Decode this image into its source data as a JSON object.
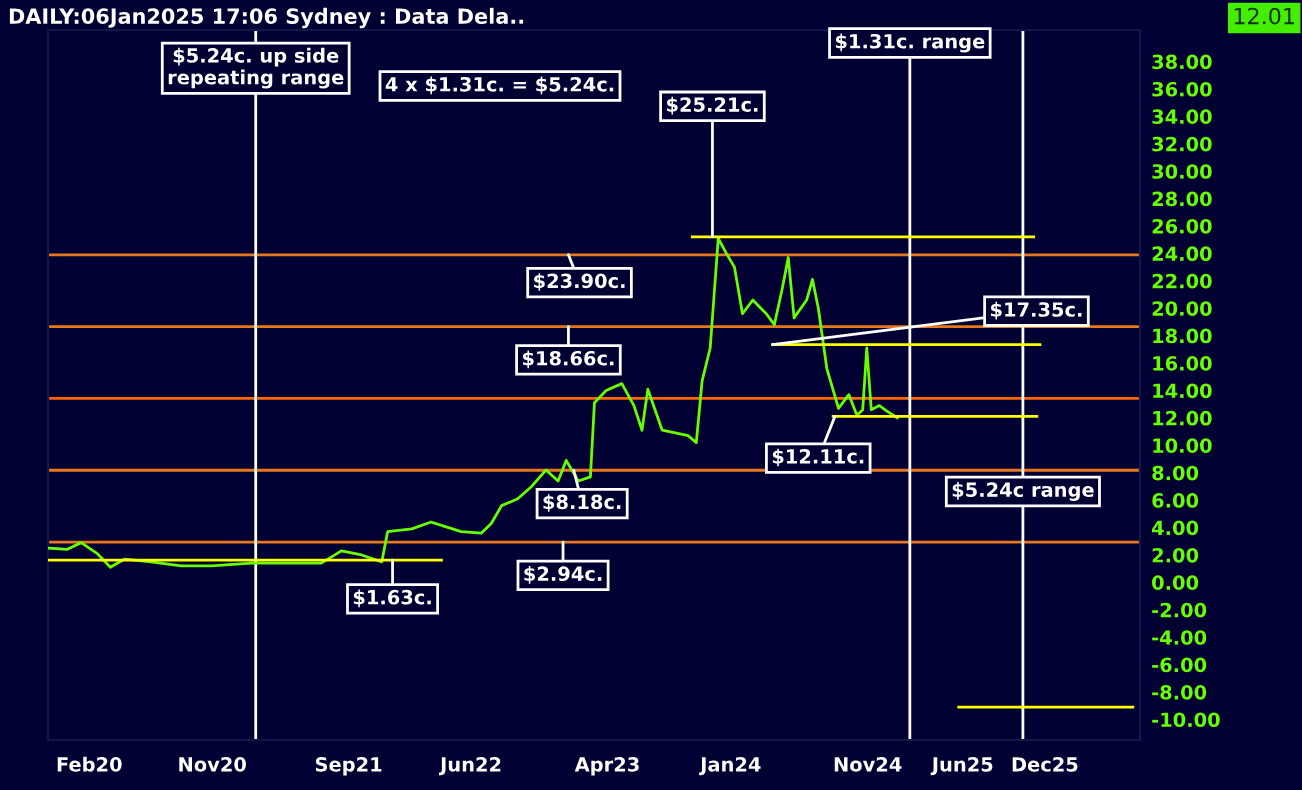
{
  "chart_data": {
    "type": "line",
    "title": "DAILY:06Jan2025 17:06 Sydney : Data Dela..",
    "series": [
      {
        "color": "#66ff00",
        "x": [
          "2019-11-04",
          "2019-12-13",
          "2020-01-14",
          "2020-02-19",
          "2020-03-19",
          "2020-04-20",
          "2020-06-17",
          "2020-08-24",
          "2020-10-30",
          "2021-01-28",
          "2021-04-26",
          "2021-07-02",
          "2021-08-16",
          "2021-09-30",
          "2021-11-14",
          "2021-11-27",
          "2022-01-20",
          "2022-03-04",
          "2022-05-10",
          "2022-06-24",
          "2022-07-16",
          "2022-08-08",
          "2022-09-13",
          "2022-10-14",
          "2022-11-15",
          "2022-12-12",
          "2022-12-30",
          "2023-01-26",
          "2023-02-22",
          "2023-03-03",
          "2023-03-29",
          "2023-05-03",
          "2023-05-30",
          "2023-06-17",
          "2023-06-30",
          "2023-08-01",
          "2023-09-28",
          "2023-10-16",
          "2023-10-29",
          "2023-11-16",
          "2023-12-04",
          "2023-12-22",
          "2024-01-09",
          "2024-01-27",
          "2024-02-19",
          "2024-03-20",
          "2024-04-07",
          "2024-04-25",
          "2024-05-08",
          "2024-05-21",
          "2024-06-18",
          "2024-07-01",
          "2024-07-14",
          "2024-08-02",
          "2024-08-19",
          "2024-08-28",
          "2024-09-20",
          "2024-10-08",
          "2024-10-21",
          "2024-10-30",
          "2024-11-09",
          "2024-11-27",
          "2024-12-14",
          "2025-01-06"
        ],
        "values": [
          2.5,
          2.4,
          2.9,
          2.1,
          1.1,
          1.7,
          1.5,
          1.2,
          1.2,
          1.4,
          1.4,
          1.4,
          2.3,
          2.0,
          1.5,
          3.7,
          3.9,
          4.4,
          3.7,
          3.6,
          4.3,
          5.6,
          6.1,
          7.0,
          8.2,
          7.4,
          8.9,
          7.4,
          7.7,
          13.1,
          14.0,
          14.5,
          12.9,
          11.1,
          14.1,
          11.1,
          10.7,
          10.2,
          14.7,
          17.1,
          25.1,
          24.0,
          23.0,
          19.6,
          20.6,
          19.6,
          18.8,
          21.5,
          23.7,
          19.3,
          20.6,
          22.1,
          20.0,
          15.6,
          13.7,
          12.7,
          13.7,
          12.2,
          12.6,
          17.1,
          12.6,
          12.9,
          12.5,
          12.01
        ]
      },
      {
        "color": "#ffff00",
        "x": [
          "2023-10-07",
          "2025-11-06"
        ],
        "values": [
          25.21,
          25.21
        ]
      },
      {
        "color": "#ffff00",
        "x": [
          "2024-04-03",
          "2025-11-20"
        ],
        "values": [
          17.35,
          17.35
        ]
      },
      {
        "color": "#ffff00",
        "x": [
          "2024-08-16",
          "2025-11-13"
        ],
        "values": [
          12.11,
          12.11
        ]
      },
      {
        "color": "#ffff00",
        "x": [
          "2019-11-04",
          "2022-03-27"
        ],
        "values": [
          1.63,
          1.63
        ]
      },
      {
        "color": "#ffff00",
        "x": [
          "2025-05-23",
          "2026-06-15"
        ],
        "values": [
          -9.1,
          -9.1
        ]
      }
    ],
    "xlim": [
      "2019-11-01",
      "2026-07-01"
    ],
    "xticks": [
      {
        "value": "2020-02-01",
        "label": "Feb20"
      },
      {
        "value": "2020-11-01",
        "label": "Nov20"
      },
      {
        "value": "2021-09-01",
        "label": "Sep21"
      },
      {
        "value": "2022-06-01",
        "label": "Jun22"
      },
      {
        "value": "2023-04-01",
        "label": "Apr23"
      },
      {
        "value": "2024-01-01",
        "label": "Jan24"
      },
      {
        "value": "2024-11-01",
        "label": "Nov24"
      },
      {
        "value": "2025-06-01",
        "label": "Jun25"
      },
      {
        "value": "2025-12-01",
        "label": "Dec25"
      }
    ],
    "ylim": [
      -11.5,
      40.3
    ],
    "yticks": [
      {
        "value": 38,
        "label": "38.00"
      },
      {
        "value": 36,
        "label": "36.00"
      },
      {
        "value": 34,
        "label": "34.00"
      },
      {
        "value": 32,
        "label": "32.00"
      },
      {
        "value": 30,
        "label": "30.00"
      },
      {
        "value": 28,
        "label": "28.00"
      },
      {
        "value": 26,
        "label": "26.00"
      },
      {
        "value": 24,
        "label": "24.00"
      },
      {
        "value": 22,
        "label": "22.00"
      },
      {
        "value": 20,
        "label": "20.00"
      },
      {
        "value": 18,
        "label": "18.00"
      },
      {
        "value": 16,
        "label": "16.00"
      },
      {
        "value": 14,
        "label": "14.00"
      },
      {
        "value": 12,
        "label": "12.00"
      },
      {
        "value": 10,
        "label": "10.00"
      },
      {
        "value": 8,
        "label": "8.00"
      },
      {
        "value": 6,
        "label": "6.00"
      },
      {
        "value": 4,
        "label": "4.00"
      },
      {
        "value": 2,
        "label": "2.00"
      },
      {
        "value": 0,
        "label": "0.00"
      },
      {
        "value": -2,
        "label": "-2.00"
      },
      {
        "value": -4,
        "label": "-4.00"
      },
      {
        "value": -6,
        "label": "-6.00"
      },
      {
        "value": -8,
        "label": "-8.00"
      },
      {
        "value": -10,
        "label": "-10.00"
      }
    ],
    "grid": false,
    "ref_lines": [
      {
        "axis": "y",
        "value": 2.94,
        "color": "#e8781e"
      },
      {
        "axis": "y",
        "value": 8.18,
        "color": "#e8781e"
      },
      {
        "axis": "y",
        "value": 13.42,
        "color": "#ff6600"
      },
      {
        "axis": "y",
        "value": 18.66,
        "color": "#e8781e"
      },
      {
        "axis": "y",
        "value": 23.9,
        "color": "#e8781e"
      },
      {
        "axis": "x",
        "value": "2021-02-06",
        "label": "$5.24c. up side\nrepeating range",
        "color": "#ffffff"
      },
      {
        "axis": "x",
        "value": "2025-02-03",
        "label": "$1.31c. range",
        "color": "#ffffff"
      },
      {
        "axis": "x",
        "value": "2025-10-13",
        "label": "$5.24c range",
        "color": "#ffffff"
      }
    ],
    "annotations": [
      {
        "text": "$23.90c.",
        "x": "2023-01-04",
        "y": 23.9
      },
      {
        "text": "$18.66c.",
        "x": "2023-01-04",
        "y": 18.66
      },
      {
        "text": "$8.18c.",
        "x": "2023-01-16",
        "y": 8.18
      },
      {
        "text": "$2.94c.",
        "x": "2022-12-23",
        "y": 2.94
      },
      {
        "text": "$1.63c.",
        "x": "2021-12-08",
        "y": 1.63
      },
      {
        "text": "$25.21c.",
        "x": "2023-11-21",
        "y": 25.21
      },
      {
        "text": "$17.35c.",
        "x": "2024-04-03",
        "y": 17.35
      },
      {
        "text": "$12.11c.",
        "x": "2024-08-20",
        "y": 12.11
      },
      "4 x $1.31c. = $5.24c.",
      "12.01"
    ],
    "legend": false
  }
}
